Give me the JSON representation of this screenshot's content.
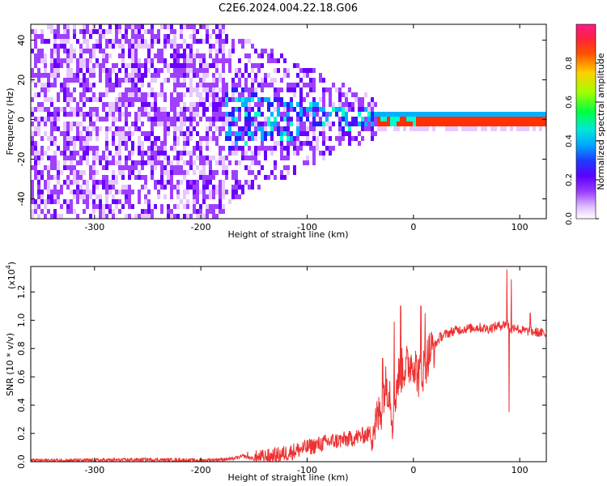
{
  "title": "C2E6.2024.004.22.18.G06",
  "chart_data": [
    {
      "type": "heatmap",
      "xlabel": "Height of straight line (km)",
      "ylabel": "Frequency (Hz)",
      "xlim": [
        -360,
        125
      ],
      "ylim": [
        -50,
        48
      ],
      "xticks": [
        -300,
        -200,
        -100,
        0,
        100
      ],
      "yticks": [
        -40,
        -20,
        0,
        20,
        40
      ],
      "colorbar": {
        "label": "Normalized spectral amplitude",
        "range": [
          0.0,
          1.0
        ],
        "ticks": [
          0.0,
          0.2,
          0.4,
          0.6,
          0.8
        ],
        "colors": [
          "#ffffff",
          "#e6c8ff",
          "#a040ff",
          "#6a00ff",
          "#2020ff",
          "#00b0ff",
          "#00ffcc",
          "#00ff00",
          "#c8ff00",
          "#ffb000",
          "#ff3000",
          "#ff1a8c"
        ]
      },
      "regions": [
        {
          "x_range": [
            -360,
            -180
          ],
          "description_value": 0.2
        },
        {
          "x_range": [
            -180,
            -35
          ],
          "description_value": 0.45
        },
        {
          "x_range": [
            -35,
            125
          ],
          "frequency": 0.5,
          "peak_value": 1.0
        }
      ]
    },
    {
      "type": "line",
      "xlabel": "Height of straight line (km)",
      "ylabel": "SNR (10 * v/v)",
      "multiplier_label": "(x10",
      "multiplier_exp": "4",
      "xlim": [
        -360,
        125
      ],
      "ylim": [
        0,
        1.38
      ],
      "xticks": [
        -300,
        -200,
        -100,
        0,
        100
      ],
      "yticks": [
        0.0,
        0.2,
        0.4,
        0.6,
        0.8,
        1.0,
        1.2
      ],
      "color": "#ee3030",
      "series": [
        {
          "x": [
            -360,
            -300,
            -250,
            -200,
            -170,
            -160,
            -150,
            -140,
            -130,
            -120,
            -110,
            -100,
            -90,
            -80,
            -70,
            -60,
            -50,
            -40,
            -35,
            -30,
            -28,
            -25,
            -22,
            -20,
            -15,
            -10,
            -5,
            0,
            5,
            10,
            15,
            20,
            25,
            30,
            40,
            50,
            60,
            70,
            80,
            85,
            88,
            90,
            92,
            95,
            100,
            110,
            120,
            125
          ],
          "y": [
            0.01,
            0.01,
            0.015,
            0.01,
            0.02,
            0.04,
            0.02,
            0.03,
            0.04,
            0.06,
            0.08,
            0.1,
            0.12,
            0.14,
            0.15,
            0.16,
            0.18,
            0.2,
            0.28,
            0.38,
            0.5,
            0.55,
            0.5,
            0.3,
            0.58,
            0.66,
            0.68,
            0.72,
            0.6,
            0.66,
            0.78,
            0.82,
            0.88,
            0.9,
            0.93,
            0.94,
            0.95,
            0.94,
            0.96,
            0.97,
            0.98,
            0.96,
            0.92,
            0.96,
            0.93,
            0.92,
            0.91,
            0.9
          ]
        }
      ],
      "spikes": [
        {
          "x": -156,
          "y": 0.07
        },
        {
          "x": -29,
          "y": 0.73
        },
        {
          "x": -18,
          "y": 0.99
        },
        {
          "x": -12,
          "y": 1.1
        },
        {
          "x": 7,
          "y": 1.1
        },
        {
          "x": 11,
          "y": 1.05
        },
        {
          "x": 88,
          "y": 1.36
        },
        {
          "x": 90,
          "y": 0.35
        },
        {
          "x": 92,
          "y": 1.29
        },
        {
          "x": 110,
          "y": 1.05
        }
      ]
    }
  ]
}
